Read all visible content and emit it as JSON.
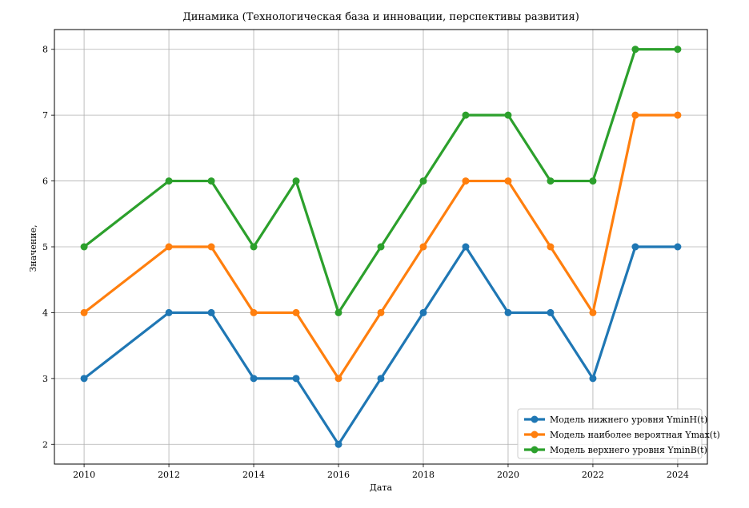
{
  "chart_data": {
    "type": "line",
    "title": "Динамика (Технологическая база и инновации, перспективы развития)",
    "xlabel": "Дата",
    "ylabel": "Значение,",
    "x": [
      2010,
      2012,
      2013,
      2014,
      2015,
      2016,
      2017,
      2018,
      2019,
      2020,
      2021,
      2022,
      2023,
      2024
    ],
    "xticks": [
      2010,
      2012,
      2014,
      2016,
      2018,
      2020,
      2022,
      2024
    ],
    "yticks": [
      2,
      3,
      4,
      5,
      6,
      7,
      8
    ],
    "xlim": [
      2009.3,
      2024.7
    ],
    "ylim": [
      1.7,
      8.3
    ],
    "grid": true,
    "legend_position": "bottom-right",
    "series": [
      {
        "name": "Модель нижнего уровня YminH(t)",
        "color": "#1f77b4",
        "values": [
          3,
          4,
          4,
          3,
          3,
          2,
          3,
          4,
          5,
          4,
          4,
          3,
          5,
          5
        ]
      },
      {
        "name": "Модель наиболее вероятная Ymax(t)",
        "color": "#ff7f0e",
        "values": [
          4,
          5,
          5,
          4,
          4,
          3,
          4,
          5,
          6,
          6,
          5,
          4,
          7,
          7
        ]
      },
      {
        "name": "Модель верхнего уровня YminB(t)",
        "color": "#2ca02c",
        "values": [
          5,
          6,
          6,
          5,
          6,
          4,
          5,
          6,
          7,
          7,
          6,
          6,
          8,
          8
        ]
      }
    ]
  }
}
